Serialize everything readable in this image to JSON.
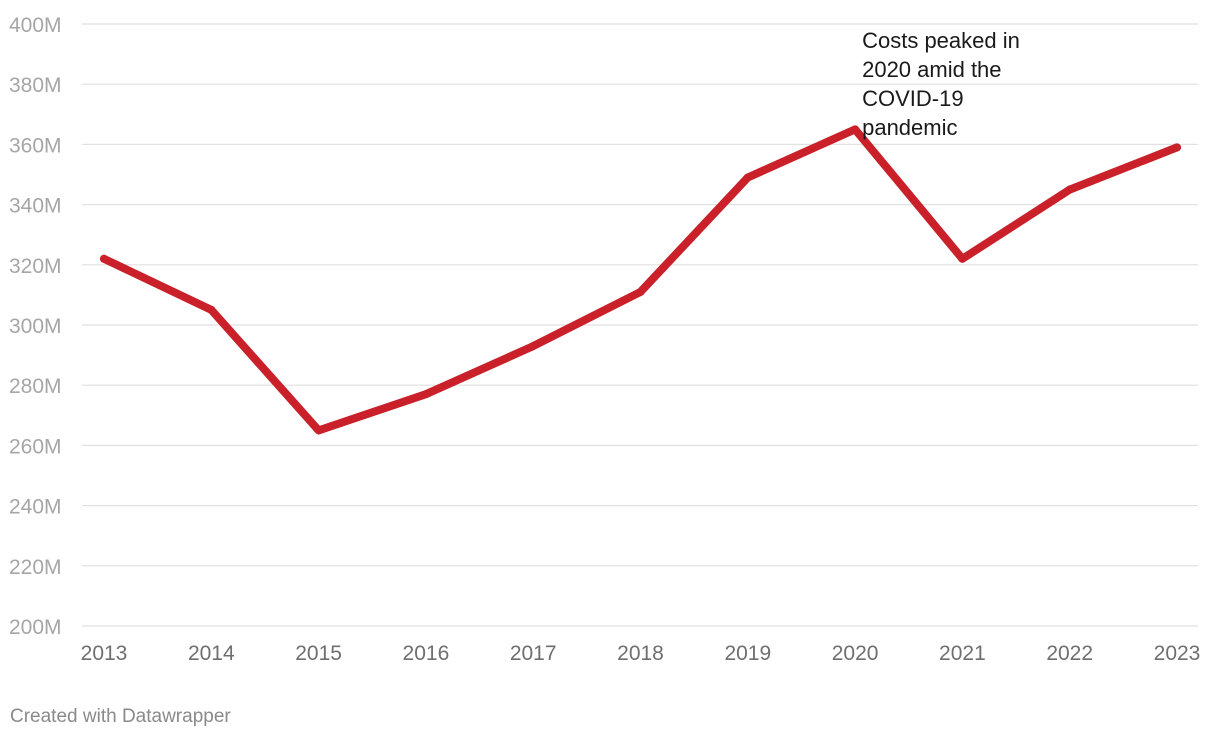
{
  "chart_data": {
    "type": "line",
    "title": "",
    "xlabel": "",
    "ylabel": "",
    "categories": [
      "2013",
      "2014",
      "2015",
      "2016",
      "2017",
      "2018",
      "2019",
      "2020",
      "2021",
      "2022",
      "2023"
    ],
    "series": [
      {
        "name": "Costs",
        "values": [
          322,
          305,
          265,
          277,
          293,
          311,
          349,
          365,
          322,
          345,
          359
        ],
        "color": "#c9202a"
      }
    ],
    "ylim": [
      200,
      400
    ],
    "y_ticks": [
      200,
      220,
      240,
      260,
      280,
      300,
      320,
      340,
      360,
      380,
      400
    ],
    "y_tick_labels": [
      "200M",
      "220M",
      "240M",
      "260M",
      "280M",
      "300M",
      "320M",
      "340M",
      "360M",
      "380M",
      "400M"
    ],
    "grid": true,
    "annotation": {
      "lines": [
        "Costs peaked in",
        "2020 amid the",
        "COVID-19",
        "pandemic"
      ],
      "category": "2020"
    }
  },
  "footer": {
    "credit": "Created with Datawrapper"
  }
}
